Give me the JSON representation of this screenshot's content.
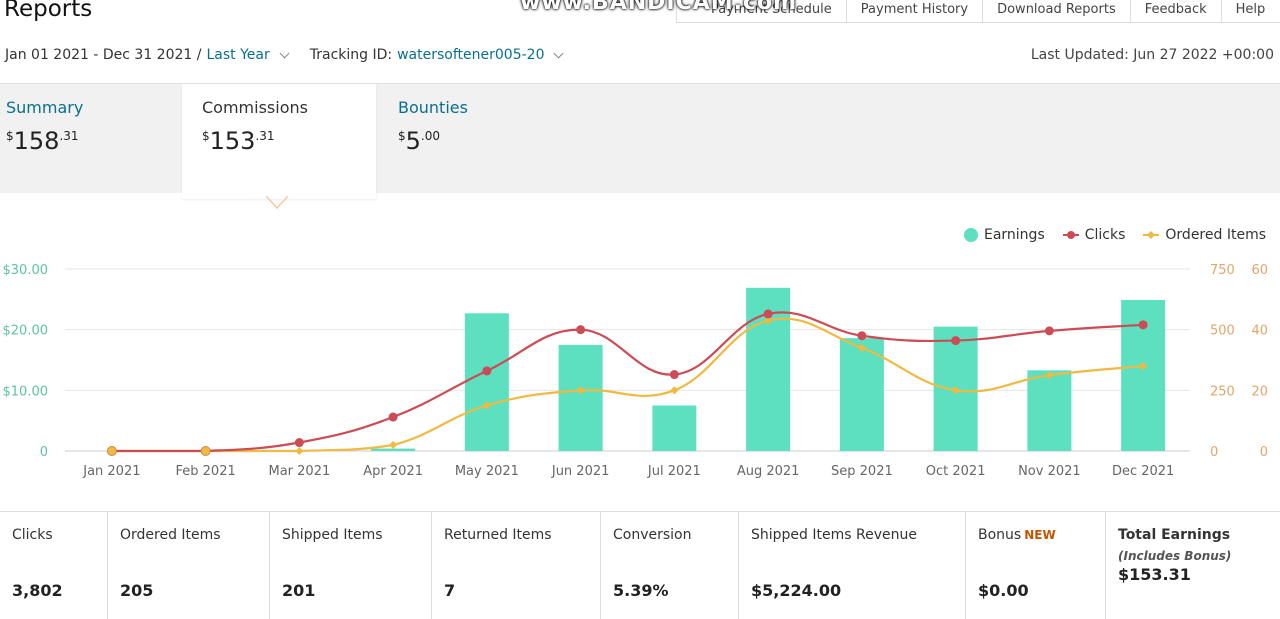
{
  "header": {
    "title": "Reports",
    "watermark": "www.BANDICAM.com",
    "nav": [
      "Payment Schedule",
      "Payment History",
      "Download Reports",
      "Feedback",
      "Help"
    ]
  },
  "filters": {
    "date_range": "Jan 01 2021 - Dec 31 2021 /",
    "preset": "Last Year",
    "tracking_label": "Tracking ID:",
    "tracking_id": "watersoftener005-20",
    "last_updated": "Last Updated: Jun 27 2022 +00:00"
  },
  "summary": [
    {
      "label": "Summary",
      "currency": "$",
      "whole": "158",
      "cents": ".31"
    },
    {
      "label": "Commissions",
      "currency": "$",
      "whole": "153",
      "cents": ".31"
    },
    {
      "label": "Bounties",
      "currency": "$",
      "whole": "5",
      "cents": ".00"
    }
  ],
  "colors": {
    "earnings": "#5ce0c0",
    "clicks": "#cc4c55",
    "ordered": "#f0b941",
    "link": "#0a6f8f",
    "left_axis": "#5cc3a3",
    "right_axis": "#e3a56b"
  },
  "chart_data": {
    "type": "bar",
    "categories": [
      "Jan 2021",
      "Feb 2021",
      "Mar 2021",
      "Apr 2021",
      "May 2021",
      "Jun 2021",
      "Jul 2021",
      "Aug 2021",
      "Sep 2021",
      "Oct 2021",
      "Nov 2021",
      "Dec 2021"
    ],
    "series": [
      {
        "name": "Earnings",
        "type": "bar",
        "axis": "left",
        "values": [
          0,
          0,
          0,
          0.4,
          22.7,
          17.5,
          7.5,
          26.9,
          18.6,
          20.5,
          13.3,
          24.9
        ]
      },
      {
        "name": "Clicks",
        "type": "line",
        "axis": "right1",
        "values": [
          0,
          0,
          35,
          140,
          330,
          500,
          315,
          565,
          475,
          455,
          495,
          520
        ]
      },
      {
        "name": "Ordered Items",
        "type": "line",
        "axis": "right2",
        "values": [
          0,
          0,
          0,
          2,
          15,
          20,
          20,
          43,
          34,
          20,
          25,
          28
        ]
      }
    ],
    "axes": {
      "left": {
        "ticks": [
          "0",
          "$10.00",
          "$20.00",
          "$30.00"
        ],
        "range": [
          0,
          30
        ]
      },
      "right1": {
        "ticks": [
          "0",
          "250",
          "500",
          "750"
        ],
        "range": [
          0,
          750
        ]
      },
      "right2": {
        "ticks": [
          "0",
          "20",
          "40",
          "60"
        ],
        "range": [
          0,
          60
        ]
      }
    },
    "legend": [
      "Earnings",
      "Clicks",
      "Ordered Items"
    ],
    "legend_position": "top-right",
    "grid": true
  },
  "metrics": [
    {
      "label": "Clicks",
      "value": "3,802"
    },
    {
      "label": "Ordered Items",
      "value": "205"
    },
    {
      "label": "Shipped Items",
      "value": "201"
    },
    {
      "label": "Returned Items",
      "value": "7"
    },
    {
      "label": "Conversion",
      "value": "5.39%"
    },
    {
      "label": "Shipped Items Revenue",
      "value": "$5,224.00"
    },
    {
      "label": "Bonus",
      "badge": "NEW",
      "value": "$0.00"
    },
    {
      "label": "Total Earnings",
      "sub": "(Includes Bonus)",
      "value": "$153.31"
    }
  ]
}
